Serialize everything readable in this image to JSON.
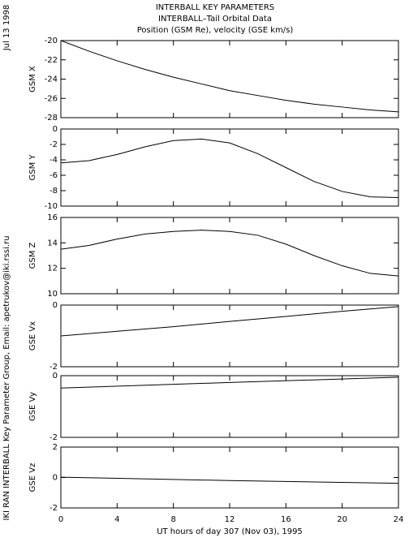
{
  "header": {
    "title": [
      "INTERBALL KEY PARAMETERS",
      "INTERBALL–Tail Orbital Data",
      "Position (GSM Re), velocity (GSE km/s)"
    ],
    "date": "Jul 13 1998",
    "credit": "IKI RAN INTERBALL Key Parameter Group, Email: apetrukov@iki.rssi.ru"
  },
  "chart_data": [
    {
      "type": "line",
      "y_label": "GSM X",
      "color": "#000000",
      "xlim": [
        0,
        24
      ],
      "xticks": [
        0,
        4,
        8,
        12,
        16,
        20,
        24
      ],
      "ylim": [
        -28,
        -20
      ],
      "yticks": [
        -28,
        -26,
        -24,
        -22,
        -20
      ],
      "x": [
        0,
        2,
        4,
        6,
        8,
        10,
        12,
        14,
        16,
        18,
        20,
        22,
        24
      ],
      "values": [
        -20,
        -21.1,
        -22.1,
        -23,
        -23.8,
        -24.5,
        -25.2,
        -25.7,
        -26.2,
        -26.6,
        -26.9,
        -27.2,
        -27.4
      ]
    },
    {
      "type": "line",
      "y_label": "GSM Y",
      "color": "#000000",
      "xlim": [
        0,
        24
      ],
      "xticks": [
        0,
        4,
        8,
        12,
        16,
        20,
        24
      ],
      "ylim": [
        -10,
        0
      ],
      "yticks": [
        -10,
        -8,
        -6,
        -4,
        -2,
        0
      ],
      "x": [
        0,
        2,
        4,
        6,
        8,
        10,
        12,
        14,
        16,
        18,
        20,
        22,
        24
      ],
      "values": [
        -4.4,
        -4.1,
        -3.3,
        -2.3,
        -1.5,
        -1.3,
        -1.8,
        -3.2,
        -5.0,
        -6.8,
        -8.1,
        -8.8,
        -8.9
      ]
    },
    {
      "type": "line",
      "y_label": "GSM Z",
      "color": "#000000",
      "xlim": [
        0,
        24
      ],
      "xticks": [
        0,
        4,
        8,
        12,
        16,
        20,
        24
      ],
      "ylim": [
        10,
        16
      ],
      "yticks": [
        10,
        12,
        14,
        16
      ],
      "x": [
        0,
        2,
        4,
        6,
        8,
        10,
        12,
        14,
        16,
        18,
        20,
        22,
        24
      ],
      "values": [
        13.5,
        13.8,
        14.3,
        14.7,
        14.9,
        15.0,
        14.9,
        14.6,
        13.9,
        13.0,
        12.2,
        11.6,
        11.4
      ]
    },
    {
      "type": "line",
      "y_label": "GSE Vx",
      "color": "#000000",
      "xlim": [
        0,
        24
      ],
      "xticks": [
        0,
        4,
        8,
        12,
        16,
        20,
        24
      ],
      "ylim": [
        -2,
        0
      ],
      "yticks": [
        -2,
        0
      ],
      "x": [
        0,
        4,
        8,
        12,
        16,
        20,
        24
      ],
      "values": [
        -1.0,
        -0.85,
        -0.7,
        -0.53,
        -0.37,
        -0.2,
        -0.05
      ]
    },
    {
      "type": "line",
      "y_label": "GSE Vy",
      "color": "#000000",
      "xlim": [
        0,
        24
      ],
      "xticks": [
        0,
        4,
        8,
        12,
        16,
        20,
        24
      ],
      "ylim": [
        -2,
        0
      ],
      "yticks": [
        -2,
        0
      ],
      "x": [
        0,
        12,
        24
      ],
      "values": [
        -0.4,
        -0.22,
        -0.05
      ]
    },
    {
      "type": "line",
      "y_label": "GSE Vz",
      "color": "#000000",
      "xlim": [
        0,
        24
      ],
      "xticks": [
        0,
        4,
        8,
        12,
        16,
        20,
        24
      ],
      "ylim": [
        -2,
        2
      ],
      "yticks": [
        -2,
        0,
        2
      ],
      "x": [
        0,
        12,
        24
      ],
      "values": [
        0.02,
        -0.2,
        -0.38
      ],
      "x_label": "UT hours of day 307 (Nov 03), 1995"
    }
  ]
}
